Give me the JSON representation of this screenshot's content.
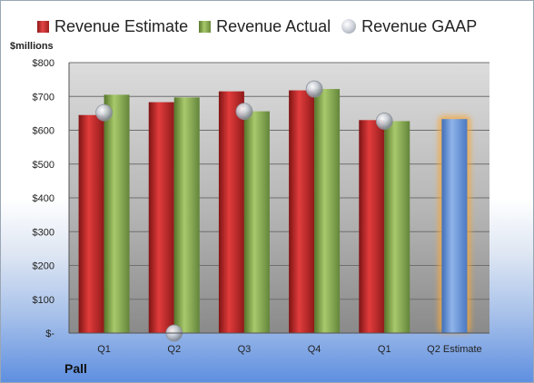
{
  "legend": {
    "estimate": "Revenue Estimate",
    "actual": "Revenue Actual",
    "gaap": "Revenue GAAP"
  },
  "unit_label": "$millions",
  "company": "Pall",
  "colors": {
    "estimate": "#c62828",
    "actual": "#8bab4f",
    "gaap": "#c8ccd4",
    "forecast": "#6e9bd8",
    "forecast_glow": "#f4a93e"
  },
  "chart_data": {
    "type": "bar",
    "categories": [
      "Q1",
      "Q2",
      "Q3",
      "Q4",
      "Q1",
      "Q2 Estimate"
    ],
    "series": [
      {
        "name": "Revenue Estimate",
        "values": [
          645,
          683,
          715,
          718,
          630,
          null
        ]
      },
      {
        "name": "Revenue Actual",
        "values": [
          705,
          697,
          656,
          722,
          627,
          633
        ]
      },
      {
        "name": "Revenue GAAP",
        "values": [
          652,
          0,
          656,
          722,
          627,
          null
        ]
      }
    ],
    "ytick_labels": [
      "$-",
      "$100",
      "$200",
      "$300",
      "$400",
      "$500",
      "$600",
      "$700",
      "$800"
    ],
    "ylim": [
      0,
      800
    ],
    "grid": true,
    "legend_position": "top",
    "note": ""
  }
}
